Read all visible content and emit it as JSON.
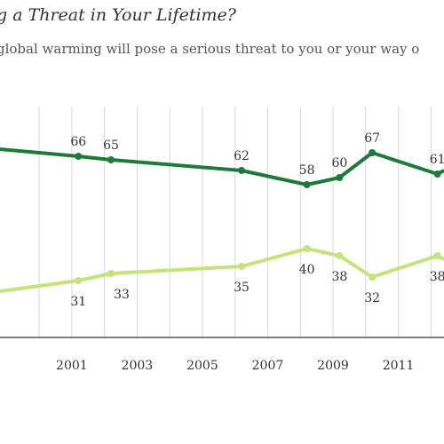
{
  "title": "g a Threat in Your Lifetime?",
  "subtitle": "global warming will pose a serious threat to you or your way o",
  "colors": {
    "dark_series": "#1e7a3a",
    "light_series": "#c4e37a",
    "grid": "#d9d9d9",
    "axis": "#333333"
  },
  "chart_data": {
    "type": "line",
    "x_ticks": [
      "2001",
      "2003",
      "2005",
      "2007",
      "2009",
      "2011"
    ],
    "xlim": [
      1998.8,
      2012.4
    ],
    "ylim": [
      15,
      80
    ],
    "grid": "vertical",
    "series": [
      {
        "key": "dark",
        "x": [
          1998.8,
          2001.2,
          2002.2,
          2006.2,
          2008.2,
          2009.2,
          2010.2,
          2012.2,
          2012.4
        ],
        "values": [
          68,
          66,
          65,
          62,
          58,
          60,
          67,
          61,
          62
        ],
        "labels": [
          "",
          "66",
          "65",
          "62",
          "58",
          "60",
          "67",
          "61",
          ""
        ]
      },
      {
        "key": "light",
        "x": [
          1998.8,
          2001.2,
          2002.2,
          2006.2,
          2008.2,
          2009.2,
          2010.2,
          2012.2,
          2012.4
        ],
        "values": [
          28,
          31,
          33,
          35,
          40,
          38,
          32,
          38,
          37
        ],
        "labels": [
          "",
          "31",
          "33",
          "35",
          "40",
          "38",
          "32",
          "38",
          ""
        ]
      }
    ]
  }
}
